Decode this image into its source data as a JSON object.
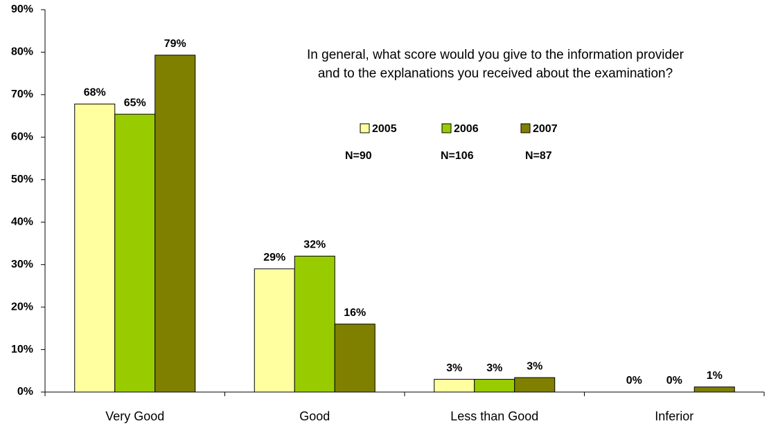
{
  "chart_data": {
    "type": "bar",
    "title_lines": [
      "In general, what score would you give to the information provider",
      "and to the  explanations  you received about the examination?"
    ],
    "categories": [
      "Very Good",
      "Good",
      "Less than Good",
      "Inferior"
    ],
    "series": [
      {
        "name": "2005",
        "note": "N=90",
        "color": "#ffffa0",
        "values": [
          67.8,
          29,
          3,
          0
        ],
        "value_labels": [
          "68%",
          "29%",
          "3%",
          "0%"
        ]
      },
      {
        "name": "2006",
        "note": "N=106",
        "color": "#99cc00",
        "values": [
          65.4,
          32,
          3,
          0
        ],
        "value_labels": [
          "65%",
          "32%",
          "3%",
          "0%"
        ]
      },
      {
        "name": "2007",
        "note": "N=87",
        "color": "#808000",
        "values": [
          79.3,
          16,
          3.4,
          1.2
        ],
        "value_labels": [
          "79%",
          "16%",
          "3%",
          "1%"
        ]
      }
    ],
    "ylim": [
      0,
      90
    ],
    "yticks": [
      {
        "value": 0,
        "label": "0%"
      },
      {
        "value": 10,
        "label": "10%"
      },
      {
        "value": 20,
        "label": "20%"
      },
      {
        "value": 30,
        "label": "30%"
      },
      {
        "value": 40,
        "label": "40%"
      },
      {
        "value": 50,
        "label": "50%"
      },
      {
        "value": 60,
        "label": "60%"
      },
      {
        "value": 70,
        "label": "70%"
      },
      {
        "value": 80,
        "label": "80%"
      },
      {
        "value": 90,
        "label": "90%"
      }
    ]
  }
}
